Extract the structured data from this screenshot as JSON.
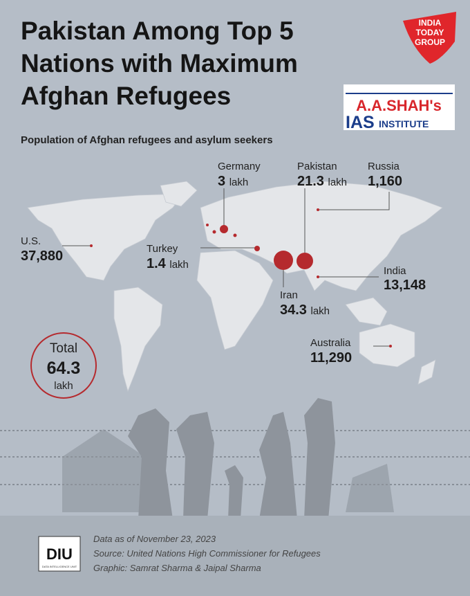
{
  "header": {
    "title_lines": [
      "Pakistan Among Top 5",
      "Nations with Maximum",
      "Afghan Refugees"
    ],
    "subtitle": "Population of Afghan refugees and asylum seekers"
  },
  "logos": {
    "publisher_lines": [
      "INDIA",
      "TODAY",
      "GROUP"
    ],
    "institute": {
      "name": "A.A.SHAH's",
      "ias": "IAS",
      "institute": "INSTITUTE"
    }
  },
  "labels": [
    {
      "name": "Germany",
      "value": "3",
      "unit": "lakh"
    },
    {
      "name": "Pakistan",
      "value": "21.3",
      "unit": "lakh"
    },
    {
      "name": "Russia",
      "value": "1,160"
    },
    {
      "name": "U.S.",
      "value": "37,880"
    },
    {
      "name": "Turkey",
      "value": "1.4",
      "unit": "lakh"
    },
    {
      "name": "India",
      "value": "13,148"
    },
    {
      "name": "Iran",
      "value": "34.3",
      "unit": "lakh"
    },
    {
      "name": "Australia",
      "value": "11,290"
    }
  ],
  "total": {
    "label": "Total",
    "value": "64.3",
    "unit": "lakh"
  },
  "footer": {
    "logo": "DIU",
    "logo_caption": "DATA INTELLIGENCE UNIT",
    "lines": [
      "Data as of November 23, 2023",
      "Source: United Nations High Commissioner for Refugees",
      "Graphic: Samrat Sharma & Jaipal Sharma"
    ]
  }
}
